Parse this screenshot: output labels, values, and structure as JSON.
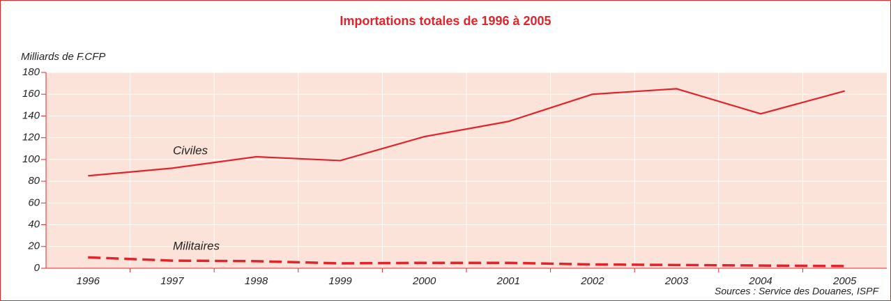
{
  "chart_data": {
    "type": "line",
    "title": "Importations totales de 1996 à 2005",
    "y_label": "Milliards de F.CFP",
    "source": "Sources : Service des Douanes, ISPF",
    "categories": [
      "1996",
      "1997",
      "1998",
      "1999",
      "2000",
      "2001",
      "2002",
      "2003",
      "2004",
      "2005"
    ],
    "series": [
      {
        "name": "Civiles",
        "color": "#e3232b",
        "dash": false,
        "values": [
          85,
          92,
          102.5,
          99,
          121,
          135,
          160,
          165,
          142,
          163
        ]
      },
      {
        "name": "Militaires",
        "color": "#e3232b",
        "dash": true,
        "values": [
          10,
          7,
          6.5,
          4.5,
          5,
          5,
          3.5,
          3,
          2.5,
          2
        ]
      }
    ],
    "ylim": [
      0,
      180
    ],
    "yticks": [
      0,
      20,
      40,
      60,
      80,
      100,
      120,
      140,
      160,
      180
    ],
    "grid": true
  }
}
